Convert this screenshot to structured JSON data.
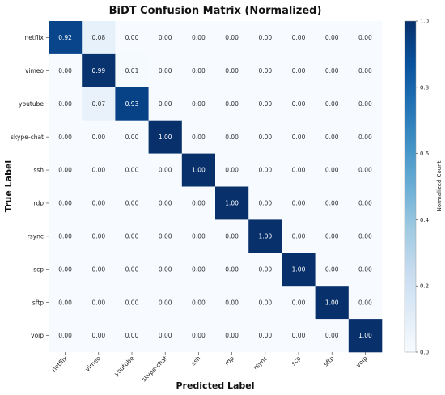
{
  "chart_data": {
    "type": "heatmap",
    "title": "BiDT Confusion Matrix (Normalized)",
    "xlabel": "Predicted Label",
    "ylabel": "True Label",
    "colorbar_label": "Normalized Count",
    "colorbar_range": [
      0.0,
      1.0
    ],
    "colorbar_ticks": [
      "0.0",
      "0.2",
      "0.4",
      "0.6",
      "0.8",
      "1.0"
    ],
    "colormap": "Blues",
    "grid": false,
    "x_labels": [
      "netflix",
      "vimeo",
      "youtube",
      "skype-chat",
      "ssh",
      "rdp",
      "rsync",
      "scp",
      "sftp",
      "voip"
    ],
    "y_labels": [
      "netflix",
      "vimeo",
      "youtube",
      "skype-chat",
      "ssh",
      "rdp",
      "rsync",
      "scp",
      "sftp",
      "voip"
    ],
    "values": [
      [
        0.92,
        0.08,
        0.0,
        0.0,
        0.0,
        0.0,
        0.0,
        0.0,
        0.0,
        0.0
      ],
      [
        0.0,
        0.99,
        0.01,
        0.0,
        0.0,
        0.0,
        0.0,
        0.0,
        0.0,
        0.0
      ],
      [
        0.0,
        0.07,
        0.93,
        0.0,
        0.0,
        0.0,
        0.0,
        0.0,
        0.0,
        0.0
      ],
      [
        0.0,
        0.0,
        0.0,
        1.0,
        0.0,
        0.0,
        0.0,
        0.0,
        0.0,
        0.0
      ],
      [
        0.0,
        0.0,
        0.0,
        0.0,
        1.0,
        0.0,
        0.0,
        0.0,
        0.0,
        0.0
      ],
      [
        0.0,
        0.0,
        0.0,
        0.0,
        0.0,
        1.0,
        0.0,
        0.0,
        0.0,
        0.0
      ],
      [
        0.0,
        0.0,
        0.0,
        0.0,
        0.0,
        0.0,
        1.0,
        0.0,
        0.0,
        0.0
      ],
      [
        0.0,
        0.0,
        0.0,
        0.0,
        0.0,
        0.0,
        0.0,
        1.0,
        0.0,
        0.0
      ],
      [
        0.0,
        0.0,
        0.0,
        0.0,
        0.0,
        0.0,
        0.0,
        0.0,
        1.0,
        0.0
      ],
      [
        0.0,
        0.0,
        0.0,
        0.0,
        0.0,
        0.0,
        0.0,
        0.0,
        0.0,
        1.0
      ]
    ]
  }
}
